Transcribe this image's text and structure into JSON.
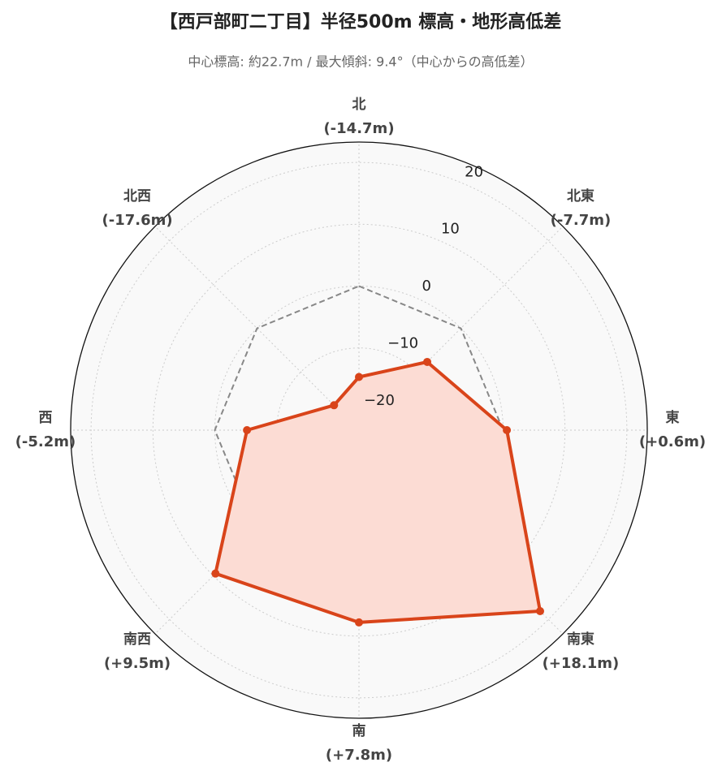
{
  "chart_data": {
    "type": "radar",
    "title": "【西戸部町二丁目】半径500m 標高・地形高低差",
    "subtitle": "中心標高: 約22.7m / 最大傾斜: 9.4°（中心からの高低差）",
    "categories": [
      "北",
      "北東",
      "東",
      "南東",
      "南",
      "南西",
      "西",
      "北西"
    ],
    "series": [
      {
        "color": "#d9441a",
        "fill": "#fcdcd4",
        "values": [
          -14.7,
          -7.7,
          0.6,
          18.1,
          7.8,
          9.5,
          -5.2,
          -17.6
        ],
        "value_labels": [
          "(-14.7m)",
          "(-7.7m)",
          "(+0.6m)",
          "(+18.1m)",
          "(+7.8m)",
          "(+9.5m)",
          "(-5.2m)",
          "(-17.6m)"
        ]
      },
      {
        "color": "#888888",
        "dash": true,
        "values": [
          0,
          0,
          0,
          0,
          0,
          0,
          0,
          0
        ]
      }
    ],
    "rlim": [
      -23.3,
      23.3
    ],
    "rticks": [
      {
        "value": -20,
        "label": "−20"
      },
      {
        "value": -10,
        "label": "−10"
      },
      0,
      10,
      20
    ],
    "grid": true
  }
}
